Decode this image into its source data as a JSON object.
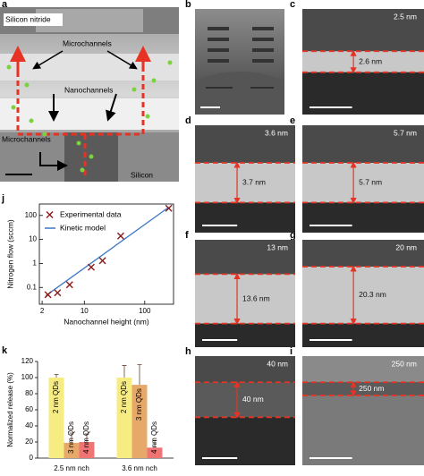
{
  "panels": [
    {
      "label": "a",
      "annotations": [
        "Silicon nitride",
        "Microchannels",
        "Nanochannels",
        "Microchannels",
        "Silicon"
      ]
    },
    {
      "label": "b"
    },
    {
      "label": "c",
      "height": "2.5 nm",
      "measured": "2.6 nm"
    },
    {
      "label": "d",
      "height": "3.6 nm",
      "measured": "3.7 nm"
    },
    {
      "label": "e",
      "height": "5.7 nm",
      "measured": "5.7 nm"
    },
    {
      "label": "f",
      "height": "13 nm",
      "measured": "13.6 nm"
    },
    {
      "label": "g",
      "height": "20 nm",
      "measured": "20.3 nm"
    },
    {
      "label": "h",
      "height": "40 nm",
      "measured": "40 nm"
    },
    {
      "label": "i",
      "height": "250 nm",
      "measured": "250 nm"
    }
  ],
  "chart_data": [
    {
      "type": "scatter",
      "panel": "j",
      "log_x": true,
      "log_y": true,
      "xlabel": "Nanochannel height (nm)",
      "ylabel": "Nitrogen flow (sccm)",
      "xlim": [
        1.8,
        300
      ],
      "ylim": [
        0.02,
        300
      ],
      "xticks": [
        2,
        10,
        100
      ],
      "yticks": [
        0.1,
        1,
        10,
        100
      ],
      "legend": "upper left",
      "series": [
        {
          "name": "Experimental data",
          "color": "#8b1a1a",
          "marker": "x",
          "x": [
            2.5,
            3.6,
            5.7,
            13,
            20,
            40,
            250
          ],
          "values": [
            0.05,
            0.06,
            0.13,
            0.7,
            1.3,
            14,
            200
          ]
        },
        {
          "name": "Kinetic model",
          "color": "#3c78c8",
          "marker": "line",
          "x": [
            2.3,
            250
          ],
          "values": [
            0.045,
            220
          ]
        }
      ]
    },
    {
      "type": "bar",
      "panel": "k",
      "ylabel": "Normalized release (%)",
      "categories": [
        "2.5 nm nch",
        "3.6 nm nch"
      ],
      "ylim": [
        0,
        120
      ],
      "yticks": [
        0,
        20,
        40,
        60,
        80,
        100,
        120
      ],
      "series": [
        {
          "name": "2 nm QDs",
          "color": "#f7ec82",
          "values": [
            100,
            100
          ],
          "errors": [
            4,
            15
          ]
        },
        {
          "name": "3 nm QDs",
          "color": "#e7a96a",
          "values": [
            19,
            91
          ],
          "errors": [
            12,
            25
          ]
        },
        {
          "name": "4 nm QDs",
          "color": "#f07474",
          "values": [
            20,
            13
          ],
          "errors": [
            10,
            9
          ]
        }
      ]
    }
  ]
}
